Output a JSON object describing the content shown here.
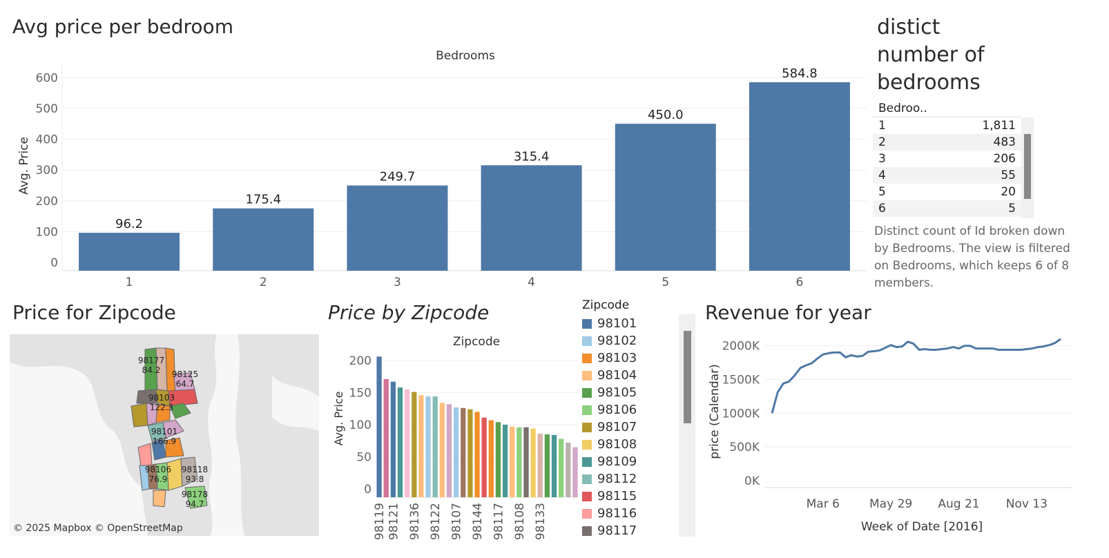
{
  "bedroom_chart": {
    "title": "Avg price per bedroom",
    "header": "Bedrooms",
    "ylabel": "Avg. Price"
  },
  "distinct_panel": {
    "title_lines": [
      "distict",
      "number of",
      "bedrooms"
    ],
    "column_header": "Bedroo..",
    "rows": [
      {
        "bedrooms": "1",
        "count": "1,811"
      },
      {
        "bedrooms": "2",
        "count": "483"
      },
      {
        "bedrooms": "3",
        "count": "206"
      },
      {
        "bedrooms": "4",
        "count": "55"
      },
      {
        "bedrooms": "5",
        "count": "20"
      },
      {
        "bedrooms": "6",
        "count": "5"
      }
    ],
    "description": "Distinct count of Id broken down by Bedrooms. The view is filtered on Bedrooms, which keeps 6 of 8 members."
  },
  "map_panel": {
    "title": "Price for Zipcode",
    "attribution": "© 2025 Mapbox © OpenStreetMap",
    "labels": [
      {
        "zip": "98177",
        "value": "84.2"
      },
      {
        "zip": "98125",
        "value": "64.7"
      },
      {
        "zip": "98103",
        "value": "122.3"
      },
      {
        "zip": "98101",
        "value": "166.9"
      },
      {
        "zip": "98106",
        "value": "76.9"
      },
      {
        "zip": "98118",
        "value": "93.8"
      },
      {
        "zip": "98178",
        "value": "94.7"
      }
    ],
    "colors": {
      "water": "#ffffff",
      "land": "#e6e6e6"
    }
  },
  "zip_chart": {
    "title": "Price by Zipcode",
    "header": "Zipcode",
    "ylabel": "Avg. Price",
    "legend_title": "Zipcode",
    "legend": [
      {
        "zip": "98101",
        "color": "#4e79a7"
      },
      {
        "zip": "98102",
        "color": "#a0cbe8"
      },
      {
        "zip": "98103",
        "color": "#f28e2b"
      },
      {
        "zip": "98104",
        "color": "#ffbe7d"
      },
      {
        "zip": "98105",
        "color": "#59a14f"
      },
      {
        "zip": "98106",
        "color": "#8cd17d"
      },
      {
        "zip": "98107",
        "color": "#b6992d"
      },
      {
        "zip": "98108",
        "color": "#f1ce63"
      },
      {
        "zip": "98109",
        "color": "#499894"
      },
      {
        "zip": "98112",
        "color": "#86bcb6"
      },
      {
        "zip": "98115",
        "color": "#e15759"
      },
      {
        "zip": "98116",
        "color": "#ff9d9a"
      },
      {
        "zip": "98117",
        "color": "#79706e"
      }
    ]
  },
  "revenue_chart": {
    "title": "Revenue for year",
    "ylabel": "price (Calendar)",
    "xlabel": "Week of Date [2016]"
  },
  "chart_data": [
    {
      "type": "bar",
      "categories": [
        "1",
        "2",
        "3",
        "4",
        "5",
        "6"
      ],
      "values": [
        96.2,
        175.4,
        249.7,
        315.4,
        450.0,
        584.8
      ],
      "data_labels": [
        "96.2",
        "175.4",
        "249.7",
        "315.4",
        "450.0",
        "584.8"
      ],
      "title": "Avg price per bedroom",
      "xlabel": "Bedrooms",
      "ylabel": "Avg. Price",
      "ylim": [
        0,
        650
      ],
      "yticks": [
        0,
        100,
        200,
        300,
        400,
        500,
        600
      ],
      "color": "#4e79a7",
      "grid": true
    },
    {
      "type": "bar",
      "title": "Price by Zipcode",
      "xlabel": "Zipcode",
      "ylabel": "Avg. Price",
      "ylim": [
        0,
        215
      ],
      "yticks": [
        0,
        50,
        100,
        150,
        200
      ],
      "tick_labels": [
        "98119",
        "98121",
        "98136",
        "98122",
        "98107",
        "98144",
        "98117",
        "98108",
        "98133"
      ],
      "bars": [
        {
          "zip": "98119",
          "value": 206,
          "color": "#4e79a7"
        },
        {
          "zip": "",
          "value": 171,
          "color": "#d37295"
        },
        {
          "zip": "98121",
          "value": 167,
          "color": "#4e79a7"
        },
        {
          "zip": "",
          "value": 158,
          "color": "#499894"
        },
        {
          "zip": "",
          "value": 155,
          "color": "#fabfd2"
        },
        {
          "zip": "98136",
          "value": 151,
          "color": "#b6992d"
        },
        {
          "zip": "",
          "value": 146,
          "color": "#ffbe7d"
        },
        {
          "zip": "",
          "value": 144,
          "color": "#a0cbe8"
        },
        {
          "zip": "98122",
          "value": 144,
          "color": "#86bcb6"
        },
        {
          "zip": "",
          "value": 134,
          "color": "#ffbe7d"
        },
        {
          "zip": "",
          "value": 132,
          "color": "#d4a6c8"
        },
        {
          "zip": "98107",
          "value": 127,
          "color": "#a0cbe8"
        },
        {
          "zip": "",
          "value": 126,
          "color": "#9d7660"
        },
        {
          "zip": "",
          "value": 124,
          "color": "#b6992d"
        },
        {
          "zip": "98144",
          "value": 120,
          "color": "#f28e2b"
        },
        {
          "zip": "",
          "value": 111,
          "color": "#e15759"
        },
        {
          "zip": "",
          "value": 107,
          "color": "#f28e2b"
        },
        {
          "zip": "98117",
          "value": 104,
          "color": "#59a14f"
        },
        {
          "zip": "",
          "value": 100,
          "color": "#499894"
        },
        {
          "zip": "",
          "value": 97,
          "color": "#ffbe7d"
        },
        {
          "zip": "98108",
          "value": 96,
          "color": "#8cd17d"
        },
        {
          "zip": "",
          "value": 96,
          "color": "#79706e"
        },
        {
          "zip": "",
          "value": 94,
          "color": "#f1ce63"
        },
        {
          "zip": "98133",
          "value": 86,
          "color": "#d7b5a6"
        },
        {
          "zip": "",
          "value": 85,
          "color": "#59a14f"
        },
        {
          "zip": "",
          "value": 84,
          "color": "#499894"
        },
        {
          "zip": "",
          "value": 78,
          "color": "#8cd17d"
        },
        {
          "zip": "",
          "value": 72,
          "color": "#bab0ac"
        },
        {
          "zip": "",
          "value": 65,
          "color": "#d4a6c8"
        }
      ]
    },
    {
      "type": "line",
      "title": "Revenue for year",
      "xlabel": "Week of Date [2016]",
      "ylabel": "price (Calendar)",
      "ylim": [
        0,
        2150000
      ],
      "yticks": [
        0,
        500000,
        1000000,
        1500000,
        2000000
      ],
      "ytick_labels": [
        "0K",
        "500K",
        "1000K",
        "1500K",
        "2000K"
      ],
      "xticks": [
        "Mar 6",
        "May 29",
        "Aug 21",
        "Nov 13"
      ],
      "xtick_positions": [
        9,
        21,
        33,
        45
      ],
      "color": "#4e79a7",
      "x": [
        0,
        1,
        2,
        3,
        4,
        5,
        6,
        7,
        8,
        9,
        10,
        11,
        12,
        13,
        14,
        15,
        16,
        17,
        18,
        19,
        20,
        21,
        22,
        23,
        24,
        25,
        26,
        27,
        28,
        29,
        30,
        31,
        32,
        33,
        34,
        35,
        36,
        37,
        38,
        39,
        40,
        41,
        42,
        43,
        44,
        45,
        46,
        47,
        48,
        49,
        50,
        51
      ],
      "y": [
        1000000,
        1310000,
        1440000,
        1470000,
        1560000,
        1670000,
        1710000,
        1740000,
        1810000,
        1870000,
        1890000,
        1900000,
        1900000,
        1830000,
        1860000,
        1840000,
        1850000,
        1910000,
        1920000,
        1930000,
        1970000,
        2010000,
        1980000,
        1990000,
        2060000,
        2030000,
        1940000,
        1950000,
        1940000,
        1940000,
        1950000,
        1960000,
        1980000,
        1960000,
        2000000,
        2000000,
        1960000,
        1960000,
        1960000,
        1960000,
        1940000,
        1940000,
        1940000,
        1940000,
        1940000,
        1950000,
        1960000,
        1980000,
        1990000,
        2010000,
        2040000,
        2100000
      ]
    }
  ]
}
